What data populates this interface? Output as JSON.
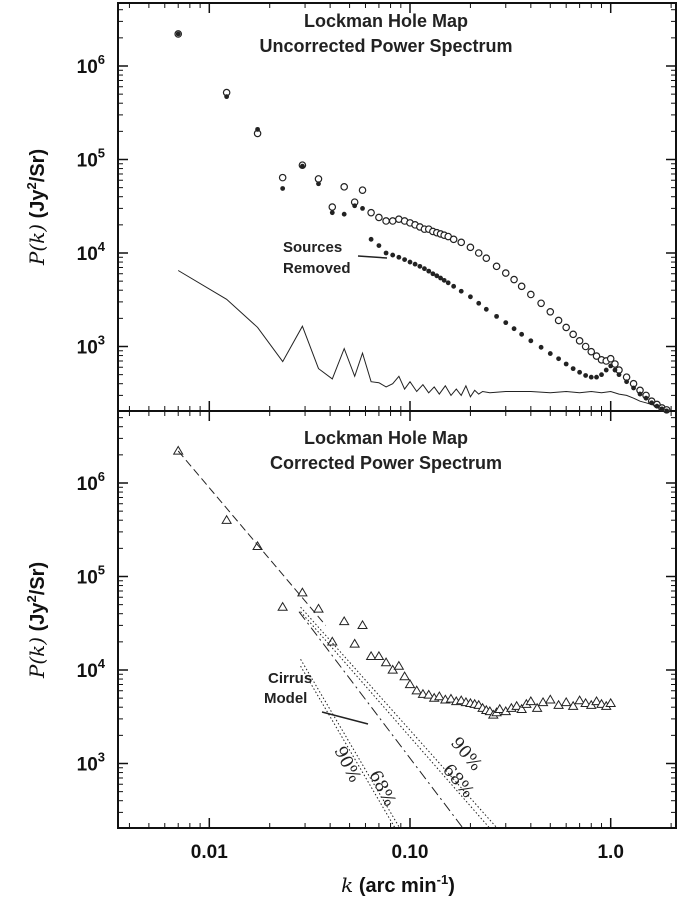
{
  "chart_data": [
    {
      "type": "scatter",
      "title": "Lockman Hole Map",
      "subtitle": "Uncorrected Power Spectrum",
      "x_scale": "log",
      "y_scale": "log",
      "xlim": [
        0.0036,
        2.0
      ],
      "ylim": [
        170,
        5000000
      ],
      "ylabel_italic": "P(k)",
      "ylabel_unit": "(Jy",
      "ylabel_unit_end": "/Sr)",
      "ylabel_sup": "2",
      "y_ticks": [
        {
          "v": 1000,
          "m": "10",
          "e": "3"
        },
        {
          "v": 10000,
          "m": "10",
          "e": "4"
        },
        {
          "v": 100000,
          "m": "10",
          "e": "5"
        },
        {
          "v": 1000000,
          "m": "10",
          "e": "6"
        }
      ],
      "annotation": [
        "Sources",
        "Removed"
      ],
      "series": [
        {
          "marker": "open-circle",
          "x": [
            0.007,
            0.0122,
            0.0174,
            0.0232,
            0.0291,
            0.035,
            0.041,
            0.047,
            0.053,
            0.058,
            0.064,
            0.07,
            0.076,
            0.082,
            0.088,
            0.094,
            0.1,
            0.106,
            0.112,
            0.118,
            0.124,
            0.13,
            0.136,
            0.142,
            0.148,
            0.155,
            0.165,
            0.18,
            0.2,
            0.22,
            0.24,
            0.27,
            0.3,
            0.33,
            0.36,
            0.4,
            0.45,
            0.5,
            0.55,
            0.6,
            0.65,
            0.7,
            0.75,
            0.8,
            0.85,
            0.9,
            0.95,
            1.0,
            1.05,
            1.1,
            1.2,
            1.3,
            1.4,
            1.5,
            1.6,
            1.7,
            1.8,
            1.9
          ],
          "y": [
            2200000,
            520000,
            190000,
            64000,
            87000,
            62000,
            31000,
            51000,
            35000,
            47000,
            27000,
            24000,
            22000,
            22000,
            23000,
            22000,
            21000,
            20000,
            19000,
            18000,
            18000,
            17000,
            16500,
            16000,
            15500,
            15000,
            14000,
            13000,
            11500,
            10000,
            8800,
            7200,
            6100,
            5200,
            4400,
            3600,
            2900,
            2350,
            1900,
            1600,
            1350,
            1150,
            1000,
            880,
            790,
            720,
            700,
            740,
            650,
            560,
            470,
            400,
            340,
            300,
            260,
            240,
            220,
            210
          ]
        },
        {
          "marker": "filled-circle",
          "x": [
            0.007,
            0.0122,
            0.0174,
            0.0232,
            0.0291,
            0.035,
            0.041,
            0.047,
            0.053,
            0.058,
            0.064,
            0.07,
            0.076,
            0.082,
            0.088,
            0.094,
            0.1,
            0.106,
            0.112,
            0.118,
            0.124,
            0.13,
            0.136,
            0.142,
            0.148,
            0.155,
            0.165,
            0.18,
            0.2,
            0.22,
            0.24,
            0.27,
            0.3,
            0.33,
            0.36,
            0.4,
            0.45,
            0.5,
            0.55,
            0.6,
            0.65,
            0.7,
            0.75,
            0.8,
            0.85,
            0.9,
            0.95,
            1.0,
            1.05,
            1.1,
            1.2,
            1.3,
            1.4,
            1.5,
            1.6,
            1.7,
            1.8,
            1.9
          ],
          "y": [
            2200000,
            470000,
            210000,
            49000,
            85000,
            55000,
            27000,
            26000,
            32000,
            30000,
            14000,
            12000,
            10000,
            9500,
            9000,
            8500,
            8000,
            7600,
            7200,
            6800,
            6400,
            6000,
            5700,
            5400,
            5100,
            4800,
            4400,
            3900,
            3400,
            2900,
            2500,
            2100,
            1800,
            1550,
            1350,
            1150,
            980,
            840,
            740,
            650,
            580,
            530,
            490,
            470,
            470,
            500,
            560,
            620,
            560,
            500,
            420,
            360,
            310,
            280,
            250,
            230,
            215,
            205
          ]
        },
        {
          "marker": "line",
          "x": [
            0.007,
            0.0122,
            0.0174,
            0.0232,
            0.0291,
            0.035,
            0.041,
            0.047,
            0.053,
            0.058,
            0.064,
            0.07,
            0.076,
            0.082,
            0.088,
            0.094,
            0.1,
            0.108,
            0.116,
            0.124,
            0.132,
            0.14,
            0.15,
            0.16,
            0.17,
            0.18,
            0.19,
            0.2,
            0.21,
            0.22,
            0.23,
            0.25,
            0.3,
            0.4,
            0.5,
            0.6,
            0.7,
            0.8,
            0.9,
            1.0,
            1.1,
            1.2,
            1.3,
            1.4,
            1.5,
            1.6,
            1.7,
            1.8,
            1.9
          ],
          "y": [
            6500,
            3200,
            1600,
            690,
            1650,
            580,
            450,
            950,
            480,
            850,
            420,
            410,
            370,
            400,
            480,
            350,
            420,
            330,
            390,
            320,
            370,
            310,
            380,
            300,
            350,
            300,
            380,
            290,
            340,
            310,
            330,
            320,
            330,
            330,
            320,
            330,
            320,
            330,
            320,
            330,
            310,
            300,
            280,
            260,
            250,
            240,
            230,
            220,
            210
          ]
        }
      ]
    },
    {
      "type": "scatter",
      "title": "Lockman Hole Map",
      "subtitle": "Corrected Power Spectrum",
      "x_scale": "log",
      "y_scale": "log",
      "xlim": [
        0.0036,
        2.0
      ],
      "ylim": [
        170,
        5000000
      ],
      "ylabel_italic": "P(k)",
      "ylabel_unit": "(Jy",
      "ylabel_unit_end": "/Sr)",
      "ylabel_sup": "2",
      "xlabel_italic": "k",
      "xlabel_unit": "(arc min",
      "xlabel_sup": "-1",
      "x_ticks": [
        {
          "v": 0.01,
          "t": "0.01"
        },
        {
          "v": 0.1,
          "t": "0.10"
        },
        {
          "v": 1.0,
          "t": "1.0"
        }
      ],
      "y_ticks": [
        {
          "v": 1000,
          "m": "10",
          "e": "3"
        },
        {
          "v": 10000,
          "m": "10",
          "e": "4"
        },
        {
          "v": 100000,
          "m": "10",
          "e": "5"
        },
        {
          "v": 1000000,
          "m": "10",
          "e": "6"
        }
      ],
      "annotation": [
        "Cirrus",
        "Model"
      ],
      "percent_labels": [
        "90%",
        "68%",
        "90%",
        "68%"
      ],
      "series": [
        {
          "marker": "open-triangle",
          "x": [
            0.007,
            0.0122,
            0.0174,
            0.0232,
            0.0291,
            0.035,
            0.041,
            0.047,
            0.053,
            0.058,
            0.064,
            0.07,
            0.076,
            0.082,
            0.088,
            0.094,
            0.1,
            0.108,
            0.116,
            0.124,
            0.132,
            0.14,
            0.15,
            0.16,
            0.17,
            0.18,
            0.19,
            0.2,
            0.21,
            0.22,
            0.23,
            0.24,
            0.25,
            0.26,
            0.27,
            0.28,
            0.3,
            0.32,
            0.34,
            0.36,
            0.38,
            0.4,
            0.43,
            0.46,
            0.5,
            0.55,
            0.6,
            0.65,
            0.7,
            0.75,
            0.8,
            0.85,
            0.9,
            0.95,
            1.0
          ],
          "y": [
            2200000,
            400000,
            210000,
            47000,
            67000,
            45000,
            20000,
            33000,
            19000,
            30000,
            14000,
            14000,
            12000,
            10000,
            11000,
            8500,
            7000,
            6000,
            5500,
            5400,
            5000,
            5200,
            4800,
            4900,
            4600,
            4700,
            4500,
            4400,
            4300,
            4200,
            3900,
            3700,
            3600,
            3300,
            3500,
            3800,
            3600,
            3900,
            4100,
            3800,
            4300,
            4600,
            3900,
            4500,
            4800,
            4200,
            4500,
            4100,
            4700,
            4400,
            4200,
            4600,
            4300,
            4100,
            4400
          ]
        },
        {
          "marker": "dashed",
          "x": [
            0.007,
            0.038
          ],
          "y": [
            2200000,
            30000
          ]
        },
        {
          "marker": "dash-dot",
          "x": [
            0.028,
            0.2
          ],
          "y": [
            42000,
            160
          ]
        },
        {
          "marker": "dotted",
          "x": [
            0.0285,
            0.3
          ],
          "y": [
            47000,
            160
          ]
        },
        {
          "marker": "dotted",
          "x": [
            0.0285,
            0.275
          ],
          "y": [
            42000,
            160
          ]
        },
        {
          "marker": "dotted",
          "x": [
            0.0285,
            0.095
          ],
          "y": [
            13000,
            160
          ]
        },
        {
          "marker": "dotted",
          "x": [
            0.0285,
            0.09
          ],
          "y": [
            11000,
            160
          ]
        }
      ]
    }
  ]
}
